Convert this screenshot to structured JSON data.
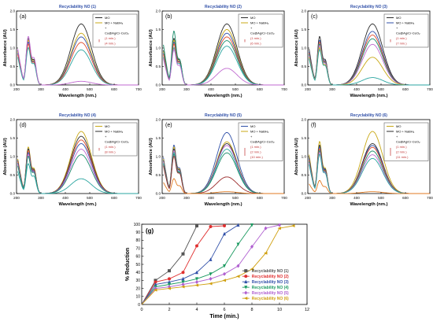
{
  "chart_data": [
    {
      "panel": "(a)",
      "type": "line",
      "title": "Recyclability NO (1)",
      "xlabel": "Wavelength (nm.)",
      "ylabel": "Absorbance (AU)",
      "xlim": [
        200,
        700
      ],
      "ylim": [
        0,
        2.0
      ],
      "xticks": [
        200,
        300,
        400,
        500,
        600,
        700
      ],
      "yticks": [
        "0.0",
        "0.5",
        "1.0",
        "1.5",
        "2.0"
      ],
      "legend": [
        "MO",
        "MO + NaBH₄",
        "+",
        "Cu@Ag/Cr-CeO₂",
        "(1 min.)",
        "(4 min.)"
      ],
      "series": [
        {
          "color": "#2b2b2b",
          "h1": 1.25,
          "h2": 0.65,
          "pk": 1.65,
          "c": 465
        },
        {
          "color": "#c8a815",
          "h1": 1.2,
          "h2": 0.62,
          "pk": 1.4,
          "c": 465
        },
        {
          "color": "#2f4fa8",
          "h1": 1.15,
          "h2": 0.6,
          "pk": 1.3,
          "c": 465
        },
        {
          "color": "#e04a2a",
          "h1": 1.1,
          "h2": 0.58,
          "pk": 1.15,
          "c": 465
        },
        {
          "color": "#2aa5a0",
          "h1": 1.0,
          "h2": 0.55,
          "pk": 0.95,
          "c": 465
        },
        {
          "color": "#c06ad0",
          "h1": 1.3,
          "h2": 0.7,
          "pk": 0.1,
          "c": 465
        }
      ]
    },
    {
      "panel": "(b)",
      "type": "line",
      "title": "Recyclability NO (2)",
      "xlabel": "Wavelength (nm.)",
      "ylabel": "Absorbance (AU)",
      "xlim": [
        200,
        700
      ],
      "ylim": [
        0,
        2.0
      ],
      "xticks": [
        200,
        300,
        400,
        500,
        600,
        700
      ],
      "yticks": [
        "0.0",
        "0.5",
        "1.0",
        "1.5",
        "2.0"
      ],
      "legend": [
        "MO",
        "MO + NaBH₄",
        "+",
        "Cu@Ag/Cr-CeO₂",
        "(1 min.)",
        "(6 min.)"
      ],
      "series": [
        {
          "color": "#2b2b2b",
          "h1": 1.25,
          "h2": 0.65,
          "pk": 1.65,
          "c": 465
        },
        {
          "color": "#c8a815",
          "h1": 1.2,
          "h2": 0.62,
          "pk": 1.5,
          "c": 465
        },
        {
          "color": "#2f4fa8",
          "h1": 1.15,
          "h2": 0.6,
          "pk": 1.4,
          "c": 465
        },
        {
          "color": "#e04a2a",
          "h1": 1.1,
          "h2": 0.58,
          "pk": 1.3,
          "c": 465
        },
        {
          "color": "#1a8c6a",
          "h1": 1.45,
          "h2": 0.65,
          "pk": 1.2,
          "c": 465
        },
        {
          "color": "#2aa5a0",
          "h1": 1.0,
          "h2": 0.55,
          "pk": 1.05,
          "c": 465
        },
        {
          "color": "#c06ad0",
          "h1": 0.95,
          "h2": 0.5,
          "pk": 0.45,
          "c": 465
        }
      ]
    },
    {
      "panel": "(c)",
      "type": "line",
      "title": "Recyclability NO (3)",
      "xlabel": "Wavelength (nm.)",
      "ylabel": "Absorbance (AU)",
      "xlim": [
        200,
        700
      ],
      "ylim": [
        0,
        2.0
      ],
      "xticks": [
        200,
        300,
        400,
        500,
        600,
        700
      ],
      "yticks": [
        "0.0",
        "0.5",
        "1.0",
        "1.5",
        "2.0"
      ],
      "legend": [
        "MO",
        "MO + NaBH₄",
        "+",
        "Cu@Ag/Cr-CeO₂",
        "(1 min.)",
        "(7 min.)"
      ],
      "series": [
        {
          "color": "#2b2b2b",
          "h1": 1.3,
          "h2": 0.65,
          "pk": 1.65,
          "c": 465
        },
        {
          "color": "#2f4fa8",
          "h1": 1.2,
          "h2": 0.62,
          "pk": 1.45,
          "c": 465
        },
        {
          "color": "#e04a2a",
          "h1": 1.15,
          "h2": 0.6,
          "pk": 1.35,
          "c": 465
        },
        {
          "color": "#1a8c6a",
          "h1": 1.1,
          "h2": 0.58,
          "pk": 1.25,
          "c": 465
        },
        {
          "color": "#c06ad0",
          "h1": 1.05,
          "h2": 0.56,
          "pk": 1.1,
          "c": 465
        },
        {
          "color": "#c8a815",
          "h1": 1.0,
          "h2": 0.52,
          "pk": 0.75,
          "c": 465
        },
        {
          "color": "#2aa5a0",
          "h1": 0.95,
          "h2": 0.5,
          "pk": 0.2,
          "c": 465
        }
      ]
    },
    {
      "panel": "(d)",
      "type": "line",
      "title": "Recyclability NO (4)",
      "xlabel": "Wavelength (nm.)",
      "ylabel": "Absorbance (AU)",
      "xlim": [
        200,
        700
      ],
      "ylim": [
        0,
        2.0
      ],
      "xticks": [
        200,
        300,
        400,
        500,
        600,
        700
      ],
      "yticks": [
        "0.0",
        "0.5",
        "1.0",
        "1.5",
        "2.0"
      ],
      "legend": [
        "MO",
        "MO + NaBH₄",
        "+",
        "Cu@Ag/Cr-CeO₂",
        "(1 min.)",
        "(8 min.)"
      ],
      "series": [
        {
          "color": "#c8a815",
          "h1": 1.25,
          "h2": 0.65,
          "pk": 1.68,
          "c": 465
        },
        {
          "color": "#2b2b2b",
          "h1": 1.2,
          "h2": 0.62,
          "pk": 1.55,
          "c": 465
        },
        {
          "color": "#e04a2a",
          "h1": 1.15,
          "h2": 0.6,
          "pk": 1.45,
          "c": 465
        },
        {
          "color": "#2f4fa8",
          "h1": 1.1,
          "h2": 0.58,
          "pk": 1.35,
          "c": 465
        },
        {
          "color": "#c06ad0",
          "h1": 1.05,
          "h2": 0.56,
          "pk": 1.2,
          "c": 465
        },
        {
          "color": "#1a8c6a",
          "h1": 1.0,
          "h2": 0.54,
          "pk": 1.05,
          "c": 465
        },
        {
          "color": "#2aa5a0",
          "h1": 0.8,
          "h2": 0.45,
          "pk": 0.4,
          "c": 465
        }
      ]
    },
    {
      "panel": "(e)",
      "type": "line",
      "title": "Recyclability NO (5)",
      "xlabel": "Wavelength (nm.)",
      "ylabel": "Absorbance (AU)",
      "xlim": [
        200,
        700
      ],
      "ylim": [
        0,
        2.0
      ],
      "xticks": [
        200,
        300,
        400,
        500,
        600,
        700
      ],
      "yticks": [
        "0.0",
        "0.5",
        "1.0",
        "1.5",
        "2.0"
      ],
      "legend": [
        "MO",
        "MO + NaBH₄",
        "+",
        "Cu@Ag/Cr-CeO₂",
        "(1 min.)",
        "(2 min.)",
        "(10 min.)"
      ],
      "series": [
        {
          "color": "#2f4fa8",
          "h1": 1.3,
          "h2": 0.65,
          "pk": 1.65,
          "c": 465
        },
        {
          "color": "#c8a815",
          "h1": 1.25,
          "h2": 0.62,
          "pk": 1.4,
          "c": 465
        },
        {
          "color": "#2b2b2b",
          "h1": 1.2,
          "h2": 0.6,
          "pk": 1.35,
          "c": 465
        },
        {
          "color": "#c06ad0",
          "h1": 1.15,
          "h2": 0.58,
          "pk": 1.3,
          "c": 465
        },
        {
          "color": "#2aa5a0",
          "h1": 1.1,
          "h2": 0.56,
          "pk": 1.2,
          "c": 465
        },
        {
          "color": "#1a8c6a",
          "h1": 1.05,
          "h2": 0.54,
          "pk": 1.1,
          "c": 465
        },
        {
          "color": "#9a2a2a",
          "h1": 1.0,
          "h2": 0.52,
          "pk": 0.45,
          "c": 465
        },
        {
          "color": "#e07a20",
          "h1": 0.4,
          "h2": 0.2,
          "pk": 0.05,
          "c": 465
        }
      ]
    },
    {
      "panel": "(f)",
      "type": "line",
      "title": "Recyclability NO (6)",
      "xlabel": "Wavelength (nm.)",
      "ylabel": "Absorbance (AU)",
      "xlim": [
        200,
        700
      ],
      "ylim": [
        0,
        2.0
      ],
      "xticks": [
        200,
        300,
        400,
        500,
        600,
        700
      ],
      "yticks": [
        "0.0",
        "0.5",
        "1.0",
        "1.5",
        "2.0"
      ],
      "legend": [
        "MO",
        "MO + NaBH₄",
        "+",
        "Cu@Ag/Cr-CeO₂",
        "(1 min.)",
        "(2 min.)",
        "(11 min.)"
      ],
      "series": [
        {
          "color": "#c8a815",
          "h1": 1.4,
          "h2": 0.65,
          "pk": 1.68,
          "c": 465
        },
        {
          "color": "#2b2b2b",
          "h1": 1.3,
          "h2": 0.62,
          "pk": 1.35,
          "c": 465
        },
        {
          "color": "#2f4fa8",
          "h1": 1.25,
          "h2": 0.6,
          "pk": 1.3,
          "c": 465
        },
        {
          "color": "#e04a2a",
          "h1": 1.2,
          "h2": 0.58,
          "pk": 1.25,
          "c": 465
        },
        {
          "color": "#1a8c6a",
          "h1": 1.15,
          "h2": 0.56,
          "pk": 1.15,
          "c": 465
        },
        {
          "color": "#c06ad0",
          "h1": 1.1,
          "h2": 0.54,
          "pk": 1.05,
          "c": 465
        },
        {
          "color": "#2aa5a0",
          "h1": 1.05,
          "h2": 0.52,
          "pk": 0.95,
          "c": 465
        },
        {
          "color": "#e07a20",
          "h1": 0.35,
          "h2": 0.18,
          "pk": 0.05,
          "c": 465
        }
      ]
    },
    {
      "panel": "(g)",
      "type": "line",
      "title": "",
      "xlabel": "Time (min.)",
      "ylabel": "% Reduction",
      "xlim": [
        0,
        12
      ],
      "ylim": [
        0,
        100
      ],
      "xticks": [
        0,
        2,
        4,
        6,
        8,
        10,
        12
      ],
      "yticks": [
        0,
        10,
        20,
        30,
        40,
        50,
        60,
        70,
        80,
        90,
        100
      ],
      "series": [
        {
          "name": "Recyclability NO (1)",
          "color": "#555555",
          "marker": "square",
          "x": [
            0,
            1,
            2,
            3,
            4
          ],
          "y": [
            0,
            30,
            42,
            63,
            98
          ]
        },
        {
          "name": "Recyclability NO (2)",
          "color": "#e03030",
          "marker": "circle",
          "x": [
            0,
            1,
            2,
            3,
            4,
            5,
            6
          ],
          "y": [
            0,
            28,
            32,
            40,
            73,
            97,
            98
          ]
        },
        {
          "name": "Recyclability NO (3)",
          "color": "#2f4fa8",
          "marker": "triangle-up",
          "x": [
            0,
            1,
            2,
            3,
            4,
            5,
            6,
            7
          ],
          "y": [
            0,
            25,
            28,
            32,
            40,
            56,
            88,
            99
          ]
        },
        {
          "name": "Recyclability NO (4)",
          "color": "#1a9a60",
          "marker": "triangle-down",
          "x": [
            0,
            1,
            2,
            3,
            4,
            5,
            6,
            7,
            8
          ],
          "y": [
            0,
            22,
            25,
            28,
            32,
            38,
            48,
            75,
            99
          ]
        },
        {
          "name": "Recyclability NO (5)",
          "color": "#b060d0",
          "marker": "diamond",
          "x": [
            0,
            1,
            2,
            3,
            4,
            5,
            6,
            7,
            8,
            9,
            10
          ],
          "y": [
            0,
            20,
            22,
            25,
            28,
            32,
            38,
            48,
            72,
            95,
            99
          ]
        },
        {
          "name": "Recyclability NO (6)",
          "color": "#d0a010",
          "marker": "triangle-left",
          "x": [
            0,
            1,
            2,
            3,
            4,
            5,
            6,
            7,
            8,
            9,
            10,
            11
          ],
          "y": [
            0,
            18,
            20,
            22,
            24,
            26,
            30,
            35,
            44,
            64,
            95,
            98
          ]
        }
      ]
    }
  ]
}
